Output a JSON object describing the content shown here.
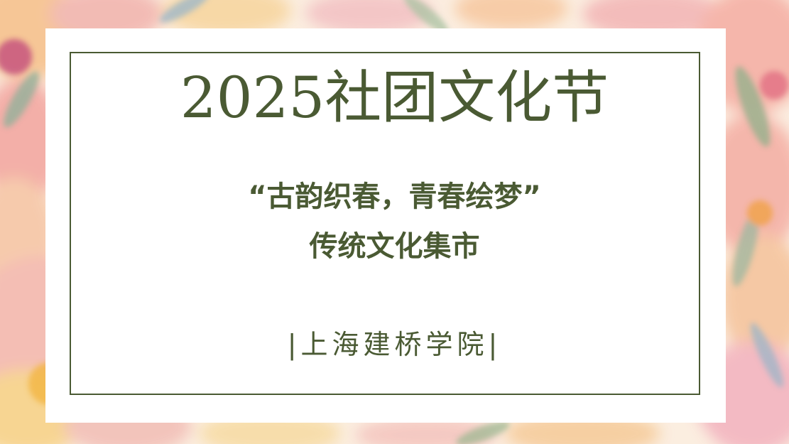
{
  "poster": {
    "title": "2025社团文化节",
    "subtitle_line1": "“古韵织春，青春绘梦”",
    "subtitle_line2": "传统文化集市",
    "institution": "|上海建桥学院|"
  },
  "colors": {
    "text": "#4a5a33",
    "frame": "#4a5a33",
    "card": "#ffffff"
  }
}
